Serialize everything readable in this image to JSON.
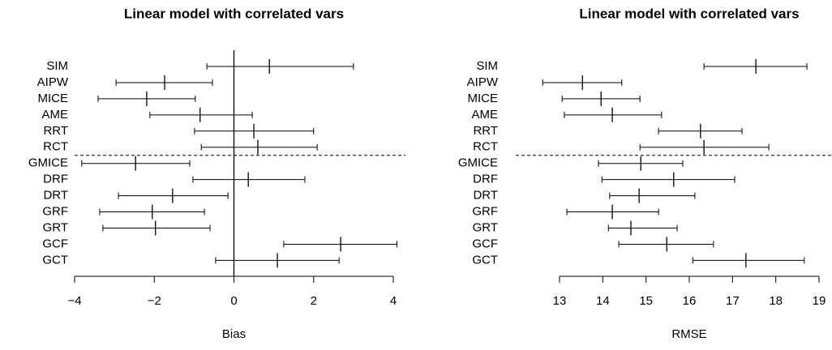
{
  "chart_data": [
    {
      "type": "errorbar",
      "title": "Linear model with correlated vars",
      "xlabel": "Bias",
      "categories": [
        "SIM",
        "AIPW",
        "MICE",
        "AME",
        "RRT",
        "RCT",
        "GMICE",
        "DRF",
        "DRT",
        "GRF",
        "GRT",
        "GCF",
        "GCT"
      ],
      "values": [
        0.89,
        -1.74,
        -2.19,
        -0.85,
        0.5,
        0.6,
        -2.47,
        0.36,
        -1.54,
        -2.05,
        -1.97,
        2.68,
        1.09
      ],
      "lower": [
        -0.68,
        -2.96,
        -3.41,
        -2.11,
        -0.99,
        -0.82,
        -3.82,
        -1.03,
        -2.9,
        -3.37,
        -3.29,
        1.25,
        -0.46
      ],
      "upper": [
        3.0,
        -0.54,
        -0.97,
        0.46,
        2.0,
        2.09,
        -1.11,
        1.78,
        -0.15,
        -0.74,
        -0.6,
        4.09,
        2.64
      ],
      "xlim": [
        -4,
        4
      ],
      "xticks": [
        {
          "value": -4,
          "label": "−4"
        },
        {
          "value": -2,
          "label": "−2"
        },
        0,
        2,
        4
      ],
      "reference_line": 0,
      "color": "#000000"
    },
    {
      "type": "errorbar",
      "title": "Linear model with correlated vars",
      "xlabel": "RMSE",
      "categories": [
        "SIM",
        "AIPW",
        "MICE",
        "AME",
        "RRT",
        "RCT",
        "GMICE",
        "DRF",
        "DRT",
        "GRF",
        "GRT",
        "GCF",
        "GCT"
      ],
      "values": [
        17.54,
        13.53,
        13.96,
        14.22,
        16.26,
        16.34,
        14.88,
        15.64,
        14.84,
        14.22,
        14.65,
        15.48,
        17.31
      ],
      "lower": [
        16.34,
        12.61,
        13.06,
        13.11,
        15.29,
        14.86,
        13.9,
        13.98,
        14.16,
        13.17,
        14.13,
        14.37,
        16.08
      ],
      "upper": [
        18.72,
        14.44,
        14.86,
        15.36,
        17.22,
        17.84,
        15.85,
        17.05,
        16.13,
        15.29,
        15.72,
        16.56,
        18.66
      ],
      "xlim": [
        13,
        19
      ],
      "xticks": [
        13,
        14,
        15,
        16,
        17,
        18,
        19
      ],
      "color": "#000000"
    }
  ]
}
